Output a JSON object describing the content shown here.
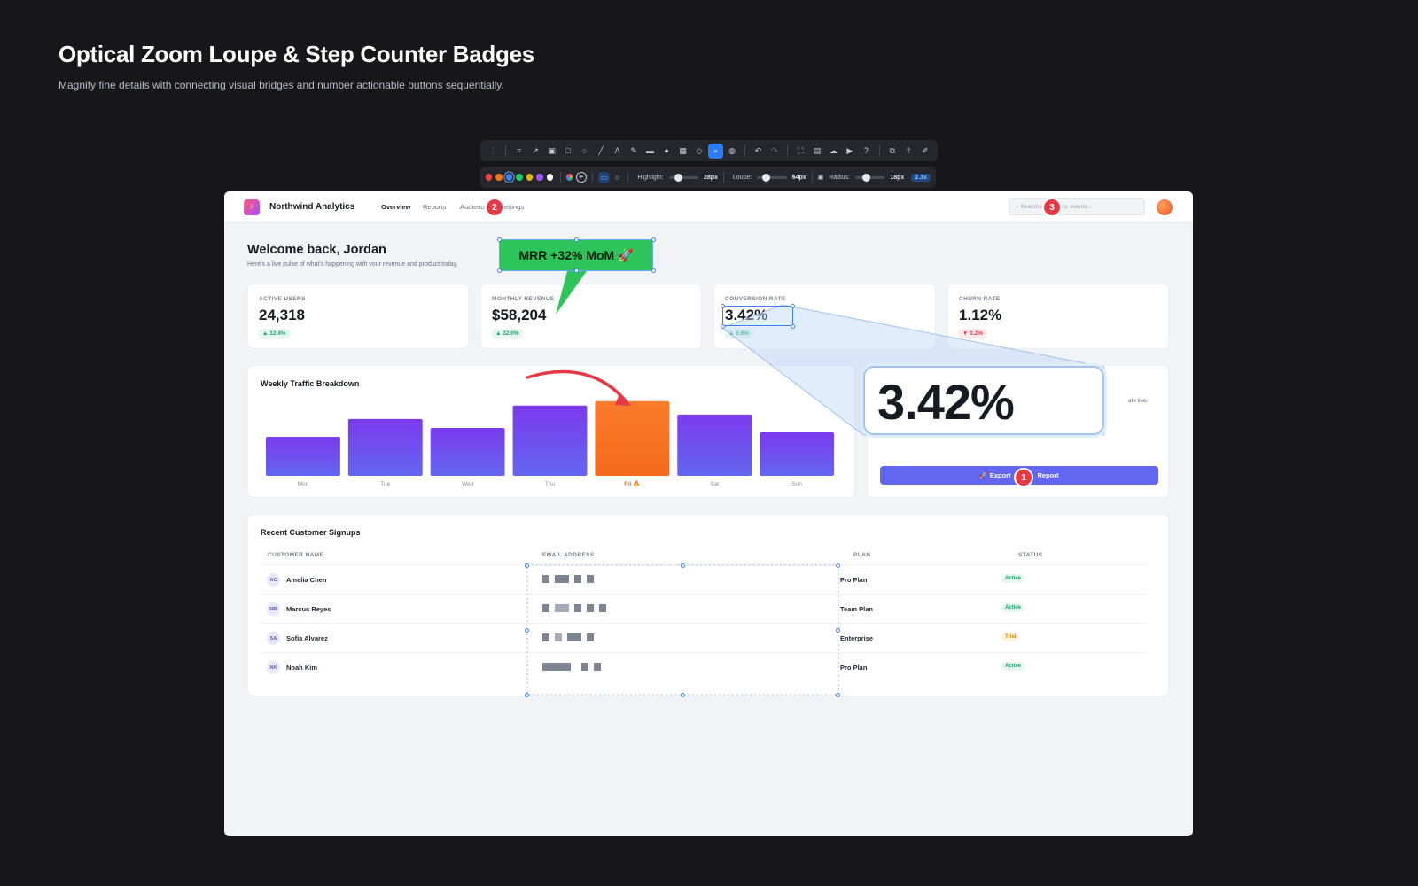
{
  "header": {
    "title": "Optical Zoom Loupe & Step Counter Badges",
    "subtitle": "Magnify fine details with connecting visual bridges and number actionable buttons sequentially."
  },
  "toolbar": {
    "tools": [
      "crop-icon",
      "arrow-icon",
      "text-box-icon",
      "rectangle-icon",
      "ellipse-icon",
      "line-icon",
      "pen-icon",
      "highlighter-icon",
      "redact-icon",
      "step-counter-icon",
      "pixelate-icon",
      "eraser-icon",
      "loupe-icon",
      "blur-icon",
      "undo-icon",
      "redo-icon",
      "capture-icon",
      "image-icon",
      "upload-icon",
      "video-icon",
      "help-icon",
      "copy-icon",
      "share-icon",
      "edit-icon"
    ],
    "colors": [
      "#ef4444",
      "#f97316",
      "#3b82f6",
      "#22c55e",
      "#eab308",
      "#a855f7",
      "#ffffff"
    ],
    "highlight_label": "Highlight:",
    "highlight_value": "28px",
    "loupe_label": "Loupe:",
    "loupe_value": "64px",
    "radius_label": "Radius:",
    "radius_value": "18px",
    "zoom_value": "2.3x"
  },
  "app": {
    "brand": "Northwind Analytics",
    "nav": [
      "Overview",
      "Reports",
      "Audience",
      "Settings"
    ],
    "search_placeholder": "Search customers, events...",
    "welcome": "Welcome back, Jordan",
    "welcome_sub": "Here's a live pulse of what's happening with your revenue and product today.",
    "kpis": [
      {
        "label": "ACTIVE USERS",
        "value": "24,318",
        "delta": "▲ 12.4%",
        "trend": "up"
      },
      {
        "label": "MONTHLY REVENUE",
        "value": "$58,204",
        "delta": "▲ 32.0%",
        "trend": "up"
      },
      {
        "label": "CONVERSION RATE",
        "value": "3.42%",
        "delta": "▲ 0.6%",
        "trend": "up"
      },
      {
        "label": "CHURN RATE",
        "value": "1.12%",
        "delta": "▼ 0.2%",
        "trend": "down"
      }
    ],
    "panel_text": "ate live.",
    "export_label": "🚀 Export",
    "export_label_2": "Report",
    "table": {
      "title": "Recent Customer Signups",
      "columns": [
        "CUSTOMER NAME",
        "EMAIL ADDRESS",
        "PLAN",
        "STATUS"
      ],
      "rows": [
        {
          "initials": "AC",
          "name": "Amelia Chen",
          "plan": "Pro Plan",
          "status": "Active"
        },
        {
          "initials": "MR",
          "name": "Marcus Reyes",
          "plan": "Team Plan",
          "status": "Active"
        },
        {
          "initials": "SA",
          "name": "Sofia Alvarez",
          "plan": "Enterprise",
          "status": "Trial"
        },
        {
          "initials": "NK",
          "name": "Noah Kim",
          "plan": "Pro Plan",
          "status": "Active"
        }
      ]
    }
  },
  "chart_data": {
    "type": "bar",
    "title": "Weekly Traffic Breakdown",
    "categories": [
      "Mon",
      "Tue",
      "Wed",
      "Thu",
      "Fri 🔥",
      "Sat",
      "Sun"
    ],
    "values": [
      35,
      51,
      43,
      63,
      67,
      55,
      39
    ],
    "highlight_index": 4,
    "ylim": [
      0,
      70
    ],
    "colors": {
      "bar_top": "#7c3aed",
      "bar_bottom": "#6366f1",
      "highlight_top": "#fb7a2c",
      "highlight_bottom": "#f56a1c"
    }
  },
  "annotations": {
    "callout_text": "MRR +32% MoM 🚀",
    "loupe_text": "3.42%",
    "steps": [
      "1",
      "2",
      "3"
    ]
  }
}
